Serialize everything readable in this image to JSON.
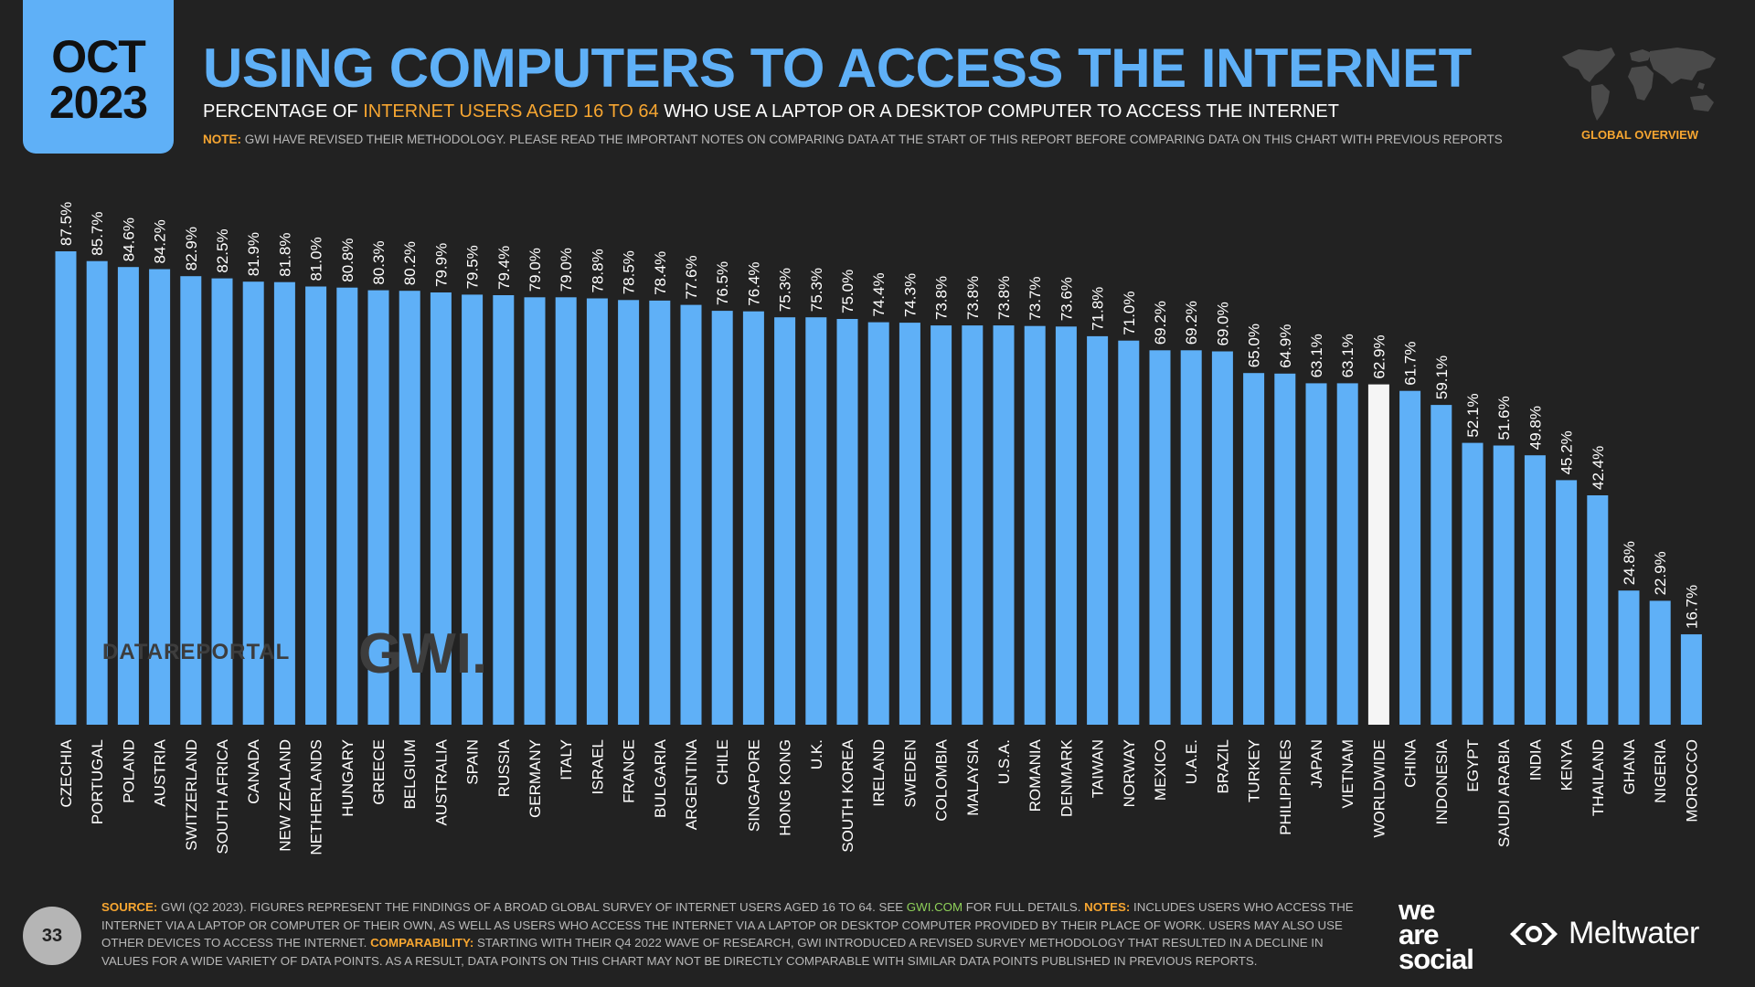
{
  "date_tab": {
    "month": "OCT",
    "year": "2023"
  },
  "title": "USING COMPUTERS TO ACCESS THE INTERNET",
  "subtitle": {
    "pre": "PERCENTAGE OF ",
    "highlight": "INTERNET USERS AGED 16 TO 64",
    "post": " WHO USE A LAPTOP OR A DESKTOP COMPUTER TO ACCESS THE INTERNET"
  },
  "note": {
    "label": "NOTE:",
    "text": " GWI HAVE REVISED THEIR METHODOLOGY. PLEASE READ THE IMPORTANT NOTES ON COMPARING DATA AT THE START OF THIS REPORT BEFORE COMPARING DATA ON THIS CHART WITH PREVIOUS REPORTS"
  },
  "map_caption": "GLOBAL OVERVIEW",
  "watermarks": {
    "datareportal": "DATAREPORTAL",
    "gwi": "GWI."
  },
  "page_number": "33",
  "source": {
    "source_label": "SOURCE:",
    "source_text": " GWI (Q2 2023). FIGURES REPRESENT THE FINDINGS OF A BROAD GLOBAL SURVEY OF INTERNET USERS AGED 16 TO 64. SEE ",
    "link": "GWI.COM",
    "after_link": " FOR FULL DETAILS. ",
    "notes_label": "NOTES:",
    "notes_text": " INCLUDES USERS WHO ACCESS THE INTERNET VIA A LAPTOP OR COMPUTER OF THEIR OWN, AS WELL AS USERS WHO ACCESS THE INTERNET VIA A LAPTOP OR DESKTOP COMPUTER PROVIDED BY THEIR PLACE OF WORK. USERS MAY ALSO USE OTHER DEVICES TO ACCESS THE INTERNET. ",
    "comparability_label": "COMPARABILITY:",
    "comparability_text": " STARTING WITH THEIR Q4 2022 WAVE OF RESEARCH, GWI INTRODUCED A REVISED SURVEY METHODOLOGY THAT RESULTED IN A DECLINE IN VALUES FOR A WIDE VARIETY OF DATA POINTS. AS A RESULT, DATA POINTS ON THIS CHART MAY NOT BE DIRECTLY COMPARABLE WITH SIMILAR DATA POINTS PUBLISHED IN PREVIOUS REPORTS."
  },
  "brands": {
    "we": "we",
    "are": "are",
    "social": "social",
    "meltwater": "Meltwater"
  },
  "colors": {
    "accent": "#5fb0f7",
    "highlight": "#f7a631",
    "worldwide_bar": "#f5f5f5",
    "background": "#222222"
  },
  "chart_data": {
    "type": "bar",
    "categories": [
      "CZECHIA",
      "PORTUGAL",
      "POLAND",
      "AUSTRIA",
      "SWITZERLAND",
      "SOUTH AFRICA",
      "CANADA",
      "NEW ZEALAND",
      "NETHERLANDS",
      "HUNGARY",
      "GREECE",
      "BELGIUM",
      "AUSTRALIA",
      "SPAIN",
      "RUSSIA",
      "GERMANY",
      "ITALY",
      "ISRAEL",
      "FRANCE",
      "BULGARIA",
      "ARGENTINA",
      "CHILE",
      "SINGAPORE",
      "HONG KONG",
      "U.K.",
      "SOUTH KOREA",
      "IRELAND",
      "SWEDEN",
      "COLOMBIA",
      "MALAYSIA",
      "U.S.A.",
      "ROMANIA",
      "DENMARK",
      "TAIWAN",
      "NORWAY",
      "MEXICO",
      "U.A.E.",
      "BRAZIL",
      "TURKEY",
      "PHILIPPINES",
      "JAPAN",
      "VIETNAM",
      "WORLDWIDE",
      "CHINA",
      "INDONESIA",
      "EGYPT",
      "SAUDI ARABIA",
      "INDIA",
      "KENYA",
      "THAILAND",
      "GHANA",
      "NIGERIA",
      "MOROCCO"
    ],
    "values": [
      87.5,
      85.7,
      84.6,
      84.2,
      82.9,
      82.5,
      81.9,
      81.8,
      81.0,
      80.8,
      80.3,
      80.2,
      79.9,
      79.5,
      79.4,
      79.0,
      79.0,
      78.8,
      78.5,
      78.4,
      77.6,
      76.5,
      76.4,
      75.3,
      75.3,
      75.0,
      74.4,
      74.3,
      73.8,
      73.8,
      73.8,
      73.7,
      73.6,
      71.8,
      71.0,
      69.2,
      69.2,
      69.0,
      65.0,
      64.9,
      63.1,
      63.1,
      62.9,
      61.7,
      59.1,
      52.1,
      51.6,
      49.8,
      45.2,
      42.4,
      24.8,
      22.9,
      16.7
    ],
    "value_labels": [
      "87.5%",
      "85.7%",
      "84.6%",
      "84.2%",
      "82.9%",
      "82.5%",
      "81.9%",
      "81.8%",
      "81.0%",
      "80.8%",
      "80.3%",
      "80.2%",
      "79.9%",
      "79.5%",
      "79.4%",
      "79.0%",
      "79.0%",
      "78.8%",
      "78.5%",
      "78.4%",
      "77.6%",
      "76.5%",
      "76.4%",
      "75.3%",
      "75.3%",
      "75.0%",
      "74.4%",
      "74.3%",
      "73.8%",
      "73.8%",
      "73.8%",
      "73.7%",
      "73.6%",
      "71.8%",
      "71.0%",
      "69.2%",
      "69.2%",
      "69.0%",
      "65.0%",
      "64.9%",
      "63.1%",
      "63.1%",
      "62.9%",
      "61.7%",
      "59.1%",
      "52.1%",
      "51.6%",
      "49.8%",
      "45.2%",
      "42.4%",
      "24.8%",
      "22.9%",
      "16.7%"
    ],
    "highlight_category": "WORLDWIDE",
    "ylim": [
      0,
      100
    ],
    "grid": false,
    "legend": "none"
  }
}
